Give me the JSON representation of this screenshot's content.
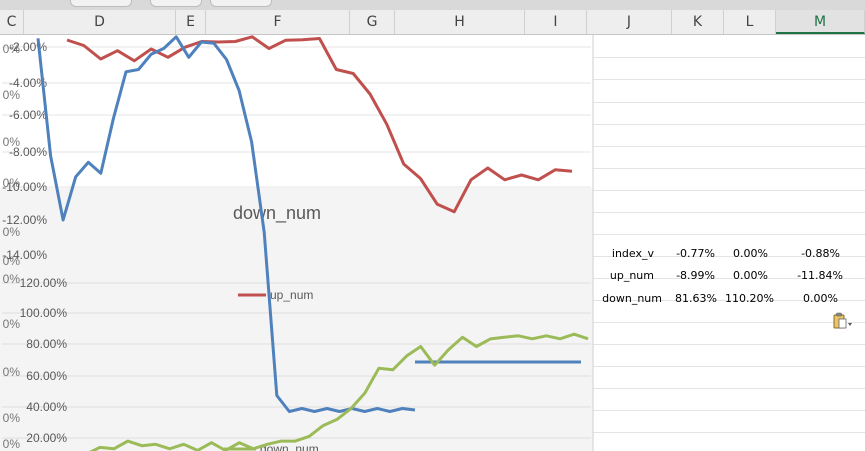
{
  "columns": [
    "C",
    "D",
    "E",
    "F",
    "G",
    "H",
    "I",
    "J",
    "K",
    "L",
    "M"
  ],
  "selected_column": "M",
  "chart": {
    "upper_axis_labels": [
      "-2.00%",
      "-4.00%",
      "-6.00%",
      "-8.00%",
      "-10.00%",
      "-12.00%",
      "-14.00%"
    ],
    "lower_axis_labels": [
      "120.00%",
      "100.00%",
      "80.00%",
      "60.00%",
      "40.00%",
      "20.00%"
    ],
    "behind_axis_fragments": [
      "0%",
      "0%",
      "0%",
      "0%",
      "0%",
      "0%",
      "0%",
      "0%",
      "0%",
      "0%",
      "0%"
    ],
    "title": "down_num",
    "legend_upper": "up_num",
    "legend_lower": "down_num",
    "colors": {
      "red": "#c0504d",
      "blue": "#4f81bd",
      "green": "#9bbb59"
    }
  },
  "chart_data": {
    "type": "line",
    "series": [
      {
        "name": "up_num",
        "values": [
          -1.6,
          -2.0,
          -2.6,
          -2.3,
          -2.7,
          -2.2,
          -2.5,
          -2.1,
          -1.6,
          -1.8,
          -1.6,
          -1.5,
          -2.0,
          -1.7,
          -1.5,
          -1.6,
          -3.2,
          -3.6,
          -4.6,
          -6.5,
          -8.6,
          -9.6,
          -10.9,
          -11.5,
          -9.5,
          -9.0,
          -9.5,
          -9.4,
          -9.5,
          -9.1,
          -9.1
        ]
      },
      {
        "name": "index_v",
        "values": [
          -1.5,
          -8.3,
          -11.8,
          -9.5,
          -8.5,
          -9.3,
          -6.0,
          -3.5,
          -3.2,
          -2.5,
          -2.0,
          -1.5,
          -2.5,
          -1.8,
          -1.7,
          -2.8,
          -4.4,
          -7.5,
          -12.5,
          -22,
          -45,
          -32,
          -40,
          -40,
          -40,
          -40,
          -40,
          -40,
          -40,
          -40,
          -40
        ]
      },
      {
        "name": "down_num",
        "values": [
          9.5,
          13,
          14,
          17,
          16,
          15,
          14,
          15,
          13,
          16,
          13,
          16,
          14,
          15,
          19,
          17,
          22,
          27,
          33,
          38,
          50,
          64,
          65,
          72,
          80,
          66,
          78,
          84,
          80,
          83,
          86,
          85,
          85,
          85,
          85,
          86,
          84
        ]
      }
    ]
  },
  "table": {
    "rows": [
      {
        "label": "index_v",
        "k": "-0.77%",
        "l": "0.00%",
        "m": "-0.88%"
      },
      {
        "label": "up_num",
        "k": "-8.99%",
        "l": "0.00%",
        "m": "-11.84%"
      },
      {
        "label": "down_num",
        "k": "81.63%",
        "l": "110.20%",
        "m": "0.00%"
      }
    ]
  },
  "paste_icon": "clipboard-paste-icon"
}
